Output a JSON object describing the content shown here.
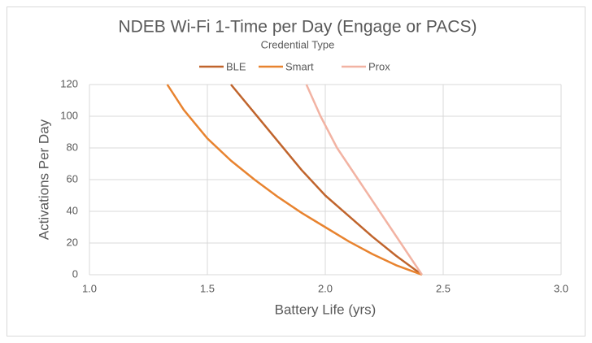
{
  "chart_data": {
    "type": "line",
    "title": "NDEB Wi-Fi 1-Time per Day (Engage or PACS)",
    "subtitle": "Credential Type",
    "x_label": "Battery Life (yrs)",
    "y_label": "Activations Per Day",
    "xlim": [
      1.0,
      3.0
    ],
    "xticks": [
      {
        "value": 1,
        "label": "1.0"
      },
      1.5,
      {
        "value": 2,
        "label": "2.0"
      },
      2.5,
      {
        "value": 3,
        "label": "3.0"
      }
    ],
    "ylim": [
      0,
      120
    ],
    "yticks": [
      0,
      20,
      40,
      60,
      80,
      100,
      120
    ],
    "grid": true,
    "legend": "top",
    "series": [
      {
        "name": "BLE",
        "color": "#c0642c",
        "x": [
          1.6,
          1.7,
          1.8,
          1.9,
          2.0,
          2.1,
          2.2,
          2.3,
          2.41
        ],
        "values": [
          120,
          102,
          84,
          66,
          50,
          37,
          24,
          12,
          0
        ]
      },
      {
        "name": "Smart",
        "color": "#e8832f",
        "x": [
          1.33,
          1.4,
          1.5,
          1.6,
          1.7,
          1.8,
          1.9,
          2.0,
          2.1,
          2.2,
          2.3,
          2.41
        ],
        "values": [
          120,
          104,
          86,
          72,
          60,
          49,
          39,
          30,
          21,
          13,
          6,
          0
        ]
      },
      {
        "name": "Prox",
        "color": "#f2b3a3",
        "x": [
          1.92,
          1.98,
          2.05,
          2.14,
          2.23,
          2.32,
          2.41
        ],
        "values": [
          120,
          100,
          80,
          60,
          40,
          20,
          0
        ]
      }
    ]
  }
}
